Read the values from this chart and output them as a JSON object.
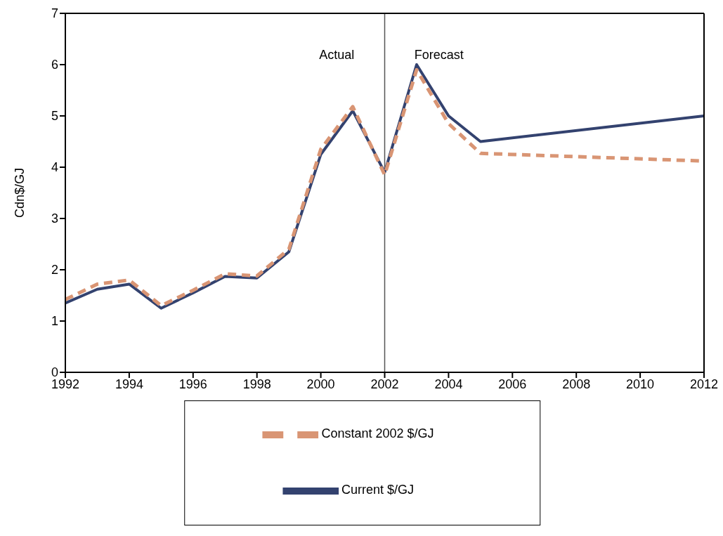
{
  "chart_data": {
    "type": "line",
    "ylabel": "Cdn$/GJ",
    "x": [
      1992,
      1993,
      1994,
      1995,
      1996,
      1997,
      1998,
      1999,
      2000,
      2001,
      2002,
      2003,
      2004,
      2005,
      2012
    ],
    "series": [
      {
        "name": "Current $/GJ",
        "color": "#33426f",
        "line_style": "solid",
        "values": [
          1.35,
          1.62,
          1.72,
          1.25,
          1.55,
          1.87,
          1.84,
          2.35,
          4.25,
          5.1,
          3.9,
          6.0,
          5.0,
          4.5,
          5.0
        ]
      },
      {
        "name": "Constant 2002 $/GJ",
        "color": "#d99574",
        "line_style": "dashed",
        "values": [
          1.42,
          1.72,
          1.8,
          1.3,
          1.6,
          1.92,
          1.88,
          2.4,
          4.35,
          5.18,
          3.85,
          5.9,
          4.85,
          4.27,
          4.12
        ]
      }
    ],
    "xlim": [
      1992,
      2012
    ],
    "xticks": [
      1992,
      1994,
      1996,
      1998,
      2000,
      2002,
      2004,
      2006,
      2008,
      2010,
      2012
    ],
    "ylim": [
      0,
      7
    ],
    "yticks": [
      0,
      1,
      2,
      3,
      4,
      5,
      6,
      7
    ],
    "ref_lines": [
      {
        "axis": "x",
        "value": 2002,
        "color": "#555555"
      }
    ],
    "annotations": [
      "Actual",
      "Forecast"
    ],
    "legend": "bottom",
    "grid": false,
    "marker": "none"
  }
}
